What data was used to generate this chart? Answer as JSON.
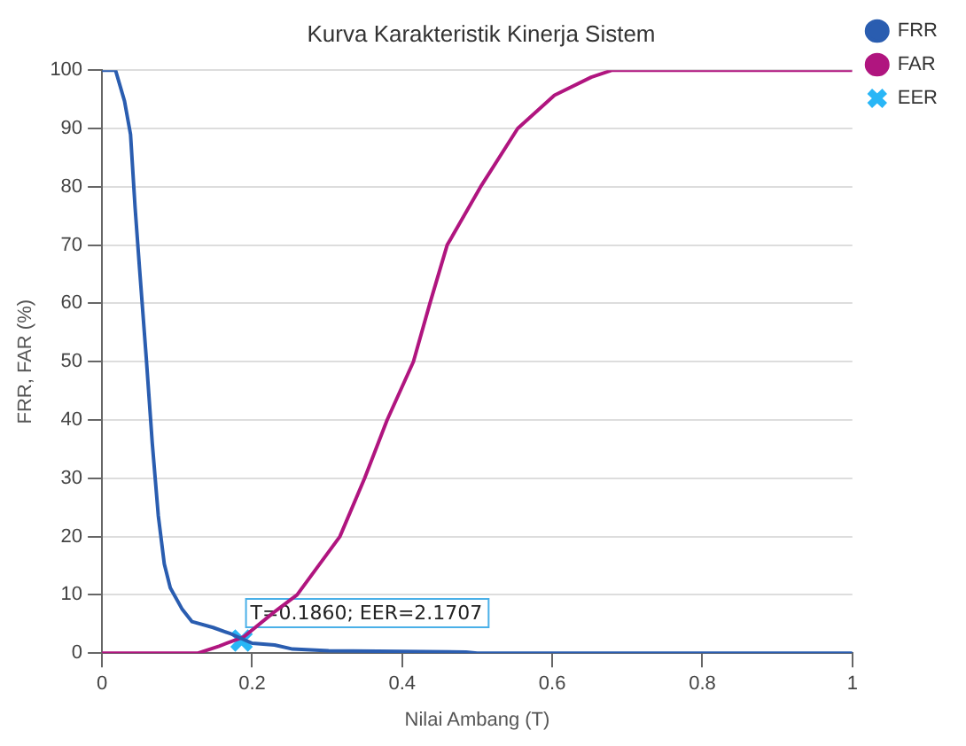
{
  "chart_data": {
    "type": "line",
    "title": "Kurva Karakteristik Kinerja Sistem",
    "xlabel": "Nilai Ambang (T)",
    "ylabel": "FRR, FAR (%)",
    "xlim": [
      0,
      1
    ],
    "ylim": [
      0,
      100
    ],
    "xticks": [
      0,
      0.2,
      0.4,
      0.6,
      0.8,
      1
    ],
    "yticks": [
      0,
      10,
      20,
      30,
      40,
      50,
      60,
      70,
      80,
      90,
      100
    ],
    "grid": "y",
    "legend": "right",
    "line_style": "solid",
    "series": [
      {
        "name": "FRR",
        "color": "#2a5db0",
        "marker": "none",
        "x": [
          0,
          0.018,
          0.03,
          0.038,
          0.044,
          0.05,
          0.059,
          0.067,
          0.075,
          0.083,
          0.091,
          0.107,
          0.12,
          0.148,
          0.172,
          0.2,
          0.23,
          0.254,
          0.302,
          0.485,
          0.5,
          1
        ],
        "values": [
          100,
          100,
          94.7,
          89,
          76.6,
          66,
          50.6,
          36,
          23.6,
          15.3,
          11.2,
          7.5,
          5.4,
          4.4,
          3.3,
          1.7,
          1.4,
          0.7,
          0.4,
          0.2,
          0,
          0
        ]
      },
      {
        "name": "FAR",
        "color": "#b0157f",
        "marker": "none",
        "x": [
          0,
          0.128,
          0.156,
          0.189,
          0.229,
          0.26,
          0.317,
          0.35,
          0.38,
          0.415,
          0.437,
          0.46,
          0.506,
          0.554,
          0.603,
          0.652,
          0.68,
          1
        ],
        "values": [
          0,
          0,
          1.2,
          2.8,
          7,
          10,
          20,
          30,
          40,
          50,
          60,
          70,
          80.3,
          90,
          95.7,
          98.8,
          100,
          100
        ]
      },
      {
        "name": "EER",
        "type": "scatter",
        "color": "#29b6f6",
        "marker": "cross",
        "x": [
          0.186
        ],
        "values": [
          2.1707
        ]
      }
    ],
    "annotations": [
      {
        "text": "T=0.1860; EER=2.1707",
        "x": 0.186,
        "y": 2.1707
      }
    ]
  }
}
